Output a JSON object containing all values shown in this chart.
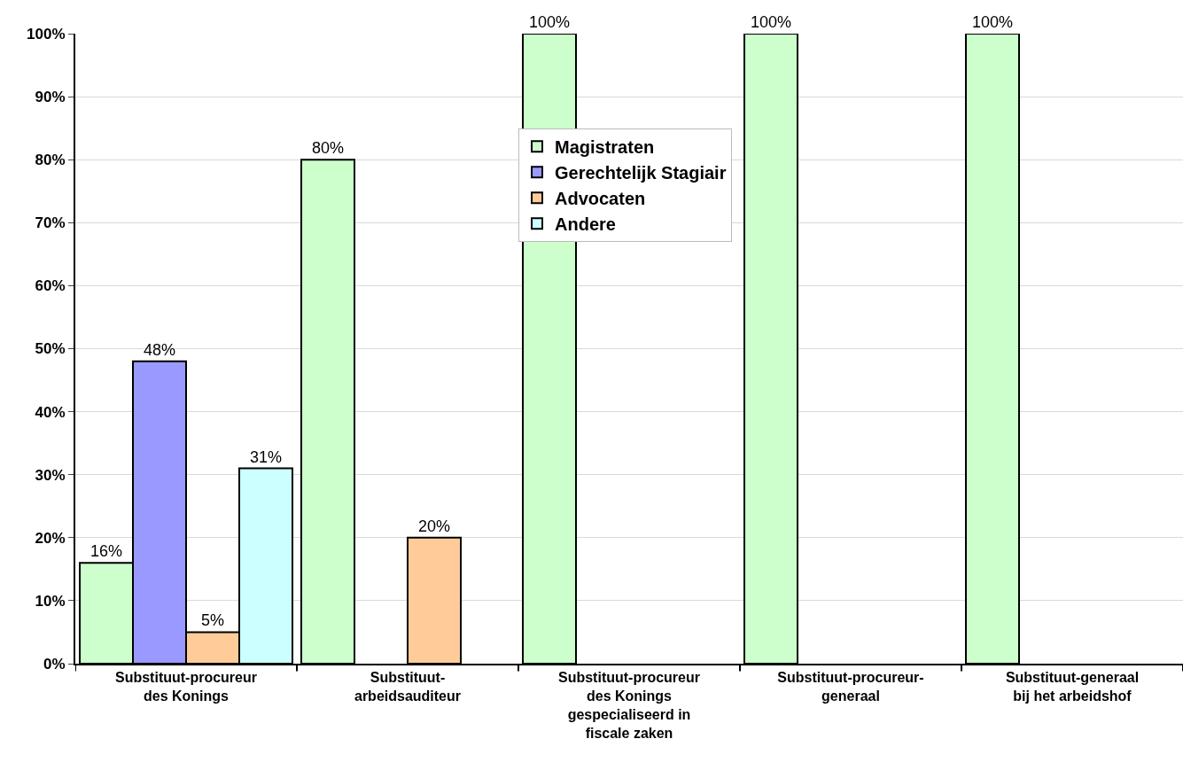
{
  "chart_data": {
    "type": "bar",
    "categories": [
      "Substituut-procureur des Konings",
      "Substituut-arbeidsauditeur",
      "Substituut-procureur des Konings gespecialiseerd in fiscale zaken",
      "Substituut-procureur-generaal",
      "Substituut-generaal bij het arbeidshof"
    ],
    "series": [
      {
        "name": "Magistraten",
        "color": "#ccffcc",
        "values": [
          16,
          80,
          100,
          100,
          100
        ],
        "value_labels": [
          "16%",
          "80%",
          "100%",
          "100%",
          "100%"
        ]
      },
      {
        "name": "Gerechtelijk Stagiair",
        "color": "#9999ff",
        "values": [
          48,
          null,
          null,
          null,
          null
        ],
        "value_labels": [
          "48%",
          null,
          null,
          null,
          null
        ]
      },
      {
        "name": "Advocaten",
        "color": "#ffcc99",
        "values": [
          5,
          20,
          null,
          null,
          null
        ],
        "value_labels": [
          "5%",
          "20%",
          null,
          null,
          null
        ]
      },
      {
        "name": "Andere",
        "color": "#ccffff",
        "values": [
          31,
          null,
          null,
          null,
          null
        ],
        "value_labels": [
          "31%",
          null,
          null,
          null,
          null
        ]
      }
    ],
    "ylim": [
      0,
      100
    ],
    "yticks": [
      {
        "value": 0,
        "label": "0%"
      },
      {
        "value": 10,
        "label": "10%"
      },
      {
        "value": 20,
        "label": "20%"
      },
      {
        "value": 30,
        "label": "30%"
      },
      {
        "value": 40,
        "label": "40%"
      },
      {
        "value": 50,
        "label": "50%"
      },
      {
        "value": 60,
        "label": "60%"
      },
      {
        "value": 70,
        "label": "70%"
      },
      {
        "value": 80,
        "label": "80%"
      },
      {
        "value": 90,
        "label": "90%"
      },
      {
        "value": 100,
        "label": "100%"
      }
    ],
    "grid": "y",
    "legend": "top"
  }
}
